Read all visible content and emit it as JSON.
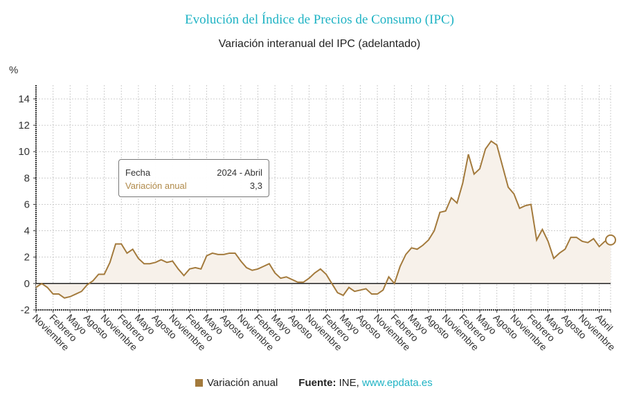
{
  "title": "Evolución del Índice de Precios de Consumo (IPC)",
  "subtitle": "Variación interanual del IPC (adelantado)",
  "tooltip": {
    "date_label": "Fecha",
    "date_value": "2024 - Abril",
    "series_label": "Variación anual",
    "series_value": "3,3"
  },
  "legend": {
    "series": "Variación anual",
    "source_label": "Fuente:",
    "source_text": "INE,",
    "source_link": "www.epdata.es"
  },
  "colors": {
    "line": "#a37a3c",
    "fill": "#f7f1ea",
    "title": "#1fb3c4"
  },
  "chart_data": {
    "type": "area",
    "ylabel": "%",
    "ylim": [
      -2,
      15
    ],
    "yticks": [
      -2,
      0,
      2,
      4,
      6,
      8,
      10,
      12,
      14
    ],
    "grid": true,
    "legend_position": "bottom",
    "start": "2015-11",
    "end": "2024-04",
    "xtick_labels": [
      "Noviembre",
      "Febrero",
      "Mayo",
      "Agosto",
      "Noviembre",
      "Febrero",
      "Mayo",
      "Agosto",
      "Noviembre",
      "Febrero",
      "Mayo",
      "Agosto",
      "Noviembre",
      "Febrero",
      "Mayo",
      "Agosto",
      "Noviembre",
      "Febrero",
      "Mayo",
      "Agosto",
      "Noviembre",
      "Febrero",
      "Mayo",
      "Agosto",
      "Noviembre",
      "Febrero",
      "Mayo",
      "Agosto",
      "Noviembre",
      "Febrero",
      "Mayo",
      "Agosto",
      "Noviembre",
      "Abril"
    ],
    "series": [
      {
        "name": "Variación anual",
        "values": [
          -0.3,
          0.0,
          -0.3,
          -0.8,
          -0.8,
          -1.1,
          -1.0,
          -0.8,
          -0.6,
          -0.1,
          0.2,
          0.7,
          0.7,
          1.6,
          3.0,
          3.0,
          2.3,
          2.6,
          1.9,
          1.5,
          1.5,
          1.6,
          1.8,
          1.6,
          1.7,
          1.1,
          0.6,
          1.1,
          1.2,
          1.1,
          2.1,
          2.3,
          2.2,
          2.2,
          2.3,
          2.3,
          1.7,
          1.2,
          1.0,
          1.1,
          1.3,
          1.5,
          0.8,
          0.4,
          0.5,
          0.3,
          0.1,
          0.1,
          0.4,
          0.8,
          1.1,
          0.7,
          0.0,
          -0.7,
          -0.9,
          -0.3,
          -0.6,
          -0.5,
          -0.4,
          -0.8,
          -0.8,
          -0.5,
          0.5,
          0.0,
          1.3,
          2.2,
          2.7,
          2.6,
          2.9,
          3.3,
          4.0,
          5.4,
          5.5,
          6.5,
          6.1,
          7.6,
          9.8,
          8.3,
          8.7,
          10.2,
          10.8,
          10.5,
          8.9,
          7.3,
          6.8,
          5.7,
          5.9,
          6.0,
          3.3,
          4.1,
          3.2,
          1.9,
          2.3,
          2.6,
          3.5,
          3.5,
          3.2,
          3.1,
          3.4,
          2.8,
          3.2,
          3.3
        ]
      }
    ]
  }
}
